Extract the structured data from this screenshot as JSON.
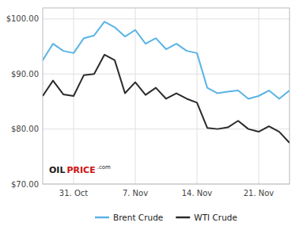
{
  "chart_data": {
    "type": "line",
    "x": [
      0,
      1,
      2,
      3,
      4,
      5,
      6,
      7,
      8,
      9,
      10,
      11,
      12,
      13,
      14,
      15,
      16,
      17,
      18,
      19,
      20,
      21,
      22,
      23,
      24
    ],
    "series": [
      {
        "name": "Brent Crude",
        "color": "#5ab4e5",
        "values": [
          92.5,
          95.5,
          94.2,
          93.8,
          96.5,
          97.0,
          99.5,
          98.5,
          96.8,
          98.0,
          95.5,
          96.5,
          94.5,
          95.5,
          94.2,
          93.8,
          87.5,
          86.5,
          86.8,
          87.0,
          85.5,
          86.0,
          87.0,
          85.5,
          87.0
        ]
      },
      {
        "name": "WTI Crude",
        "color": "#2b2b2b",
        "values": [
          86.0,
          88.8,
          86.3,
          86.0,
          89.8,
          90.0,
          93.5,
          92.5,
          86.5,
          88.5,
          86.2,
          87.5,
          85.5,
          86.5,
          85.5,
          84.8,
          80.2,
          80.0,
          80.3,
          81.5,
          80.0,
          79.5,
          80.5,
          79.5,
          77.5
        ]
      }
    ],
    "xlim": [
      0,
      24
    ],
    "xticks": [
      {
        "value": 3,
        "label": "31. Oct"
      },
      {
        "value": 9,
        "label": "7. Nov"
      },
      {
        "value": 15,
        "label": "14. Nov"
      },
      {
        "value": 21,
        "label": "21. Nov"
      }
    ],
    "ylim": [
      70,
      102
    ],
    "yticks": [
      {
        "value": 70,
        "label": "$70.00"
      },
      {
        "value": 80,
        "label": "$80.00"
      },
      {
        "value": 90,
        "label": "$90.00"
      },
      {
        "value": 100,
        "label": "$100.00"
      }
    ],
    "grid": true,
    "legend": "bottom",
    "annotations": [
      {
        "text": "OIL",
        "color": "#1a1a1a"
      },
      {
        "text": "PRICE",
        "color": "#cc1111"
      },
      {
        "text": ".com",
        "color": "#1a1a1a"
      }
    ]
  }
}
